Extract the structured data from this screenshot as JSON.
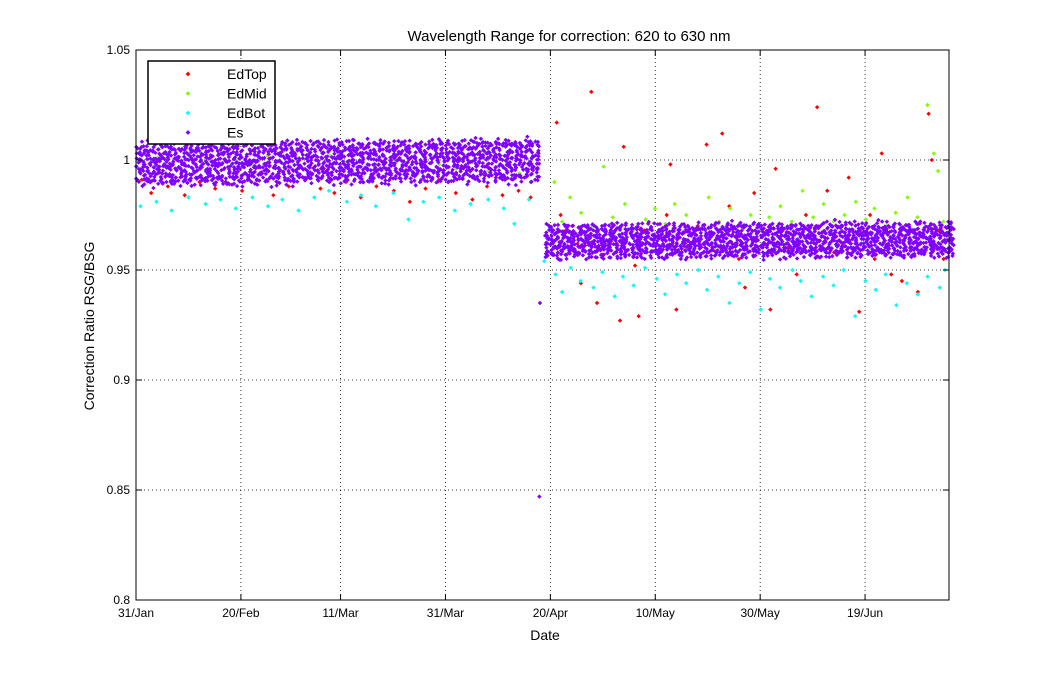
{
  "chart_data": {
    "type": "scatter",
    "title": "Wavelength Range for correction: 620 to 630 nm",
    "xlabel": "Date",
    "ylabel": "Correction Ratio RSG/BSG",
    "ylim": [
      0.8,
      1.05
    ],
    "xlim": [
      "2013-01-31",
      "2013-07-05"
    ],
    "x_ticks": [
      {
        "date": "2013-01-31",
        "label": "31/Jan"
      },
      {
        "date": "2013-02-20",
        "label": "20/Feb"
      },
      {
        "date": "2013-03-11",
        "label": "11/Mar"
      },
      {
        "date": "2013-03-31",
        "label": "31/Mar"
      },
      {
        "date": "2013-04-20",
        "label": "20/Apr"
      },
      {
        "date": "2013-05-10",
        "label": "10/May"
      },
      {
        "date": "2013-05-30",
        "label": "30/May"
      },
      {
        "date": "2013-06-19",
        "label": "19/Jun"
      }
    ],
    "y_ticks": [
      {
        "value": 0.8,
        "label": "0.8"
      },
      {
        "value": 0.85,
        "label": "0.85"
      },
      {
        "value": 0.9,
        "label": "0.9"
      },
      {
        "value": 0.95,
        "label": "0.95"
      },
      {
        "value": 1.0,
        "label": "1"
      },
      {
        "value": 1.05,
        "label": "1.05"
      }
    ],
    "grid": true,
    "grid_style": "dotted",
    "legend_position": "top-left",
    "marker": "diamond",
    "series": [
      {
        "name": "EdTop",
        "color": "#ff0000",
        "points": [
          [
            "2013-02-01",
            0.991
          ],
          [
            "2013-02-03",
            0.985
          ],
          [
            "2013-02-06",
            0.988
          ],
          [
            "2013-02-09",
            0.984
          ],
          [
            "2013-02-12",
            0.99
          ],
          [
            "2013-02-15",
            0.987
          ],
          [
            "2013-02-18",
            0.989
          ],
          [
            "2013-02-20",
            0.986
          ],
          [
            "2013-02-23",
            0.991
          ],
          [
            "2013-02-26",
            0.984
          ],
          [
            "2013-03-01",
            0.988
          ],
          [
            "2013-03-04",
            0.992
          ],
          [
            "2013-03-07",
            0.987
          ],
          [
            "2013-03-10",
            0.985
          ],
          [
            "2013-03-12",
            0.99
          ],
          [
            "2013-03-15",
            0.983
          ],
          [
            "2013-03-18",
            0.988
          ],
          [
            "2013-03-21",
            0.986
          ],
          [
            "2013-03-24",
            0.981
          ],
          [
            "2013-03-27",
            0.987
          ],
          [
            "2013-03-30",
            0.991
          ],
          [
            "2013-04-02",
            0.985
          ],
          [
            "2013-04-05",
            0.982
          ],
          [
            "2013-04-08",
            0.988
          ],
          [
            "2013-04-11",
            0.984
          ],
          [
            "2013-04-14",
            0.986
          ],
          [
            "2013-04-16",
            0.983
          ],
          [
            "2013-04-21",
            1.017
          ],
          [
            "2013-04-22",
            0.975
          ],
          [
            "2013-04-23",
            0.968
          ],
          [
            "2013-04-25",
            0.962
          ],
          [
            "2013-04-26",
            0.944
          ],
          [
            "2013-04-28",
            1.031
          ],
          [
            "2013-04-29",
            0.935
          ],
          [
            "2013-04-30",
            0.957
          ],
          [
            "2013-05-02",
            0.97
          ],
          [
            "2013-05-03",
            0.927
          ],
          [
            "2013-05-04",
            1.006
          ],
          [
            "2013-05-06",
            0.952
          ],
          [
            "2013-05-07",
            0.929
          ],
          [
            "2013-05-08",
            0.968
          ],
          [
            "2013-05-10",
            0.958
          ],
          [
            "2013-05-12",
            0.975
          ],
          [
            "2013-05-13",
            0.998
          ],
          [
            "2013-05-14",
            0.932
          ],
          [
            "2013-05-16",
            0.961
          ],
          [
            "2013-05-18",
            0.97
          ],
          [
            "2013-05-20",
            1.007
          ],
          [
            "2013-05-21",
            0.959
          ],
          [
            "2013-05-23",
            1.012
          ],
          [
            "2013-05-24",
            0.979
          ],
          [
            "2013-05-26",
            0.955
          ],
          [
            "2013-05-27",
            0.942
          ],
          [
            "2013-05-29",
            0.985
          ],
          [
            "2013-05-31",
            0.966
          ],
          [
            "2013-06-01",
            0.932
          ],
          [
            "2013-06-02",
            0.996
          ],
          [
            "2013-06-04",
            0.96
          ],
          [
            "2013-06-06",
            0.948
          ],
          [
            "2013-06-08",
            0.975
          ],
          [
            "2013-06-10",
            1.024
          ],
          [
            "2013-06-12",
            0.986
          ],
          [
            "2013-06-13",
            0.958
          ],
          [
            "2013-06-15",
            0.962
          ],
          [
            "2013-06-16",
            0.992
          ],
          [
            "2013-06-18",
            0.931
          ],
          [
            "2013-06-20",
            0.975
          ],
          [
            "2013-06-21",
            0.955
          ],
          [
            "2013-06-22",
            1.003
          ],
          [
            "2013-06-24",
            0.948
          ],
          [
            "2013-06-26",
            0.945
          ],
          [
            "2013-06-28",
            0.962
          ],
          [
            "2013-06-29",
            0.94
          ],
          [
            "2013-07-01",
            1.021
          ],
          [
            "2013-07-02",
            1.0
          ],
          [
            "2013-07-03",
            0.968
          ],
          [
            "2013-07-04",
            0.955
          ]
        ]
      },
      {
        "name": "EdMid",
        "color": "#7fff00",
        "points": [
          [
            "2013-02-01",
            0.996
          ],
          [
            "2013-02-04",
            1.001
          ],
          [
            "2013-02-07",
            0.998
          ],
          [
            "2013-02-10",
            1.002
          ],
          [
            "2013-02-13",
            0.999
          ],
          [
            "2013-02-16",
            1.003
          ],
          [
            "2013-02-19",
            1.0
          ],
          [
            "2013-02-22",
            0.998
          ],
          [
            "2013-02-25",
            1.002
          ],
          [
            "2013-02-28",
            0.999
          ],
          [
            "2013-03-03",
            1.001
          ],
          [
            "2013-03-06",
            0.997
          ],
          [
            "2013-03-09",
            1.002
          ],
          [
            "2013-03-12",
            0.999
          ],
          [
            "2013-03-15",
            1.003
          ],
          [
            "2013-03-18",
            0.998
          ],
          [
            "2013-03-21",
            1.0
          ],
          [
            "2013-03-24",
            0.996
          ],
          [
            "2013-03-27",
            1.001
          ],
          [
            "2013-03-30",
            0.998
          ],
          [
            "2013-04-02",
            0.996
          ],
          [
            "2013-04-05",
            0.999
          ],
          [
            "2013-04-08",
            0.995
          ],
          [
            "2013-04-11",
            0.997
          ],
          [
            "2013-04-14",
            0.994
          ],
          [
            "2013-04-21",
            0.99
          ],
          [
            "2013-04-22",
            0.972
          ],
          [
            "2013-04-24",
            0.983
          ],
          [
            "2013-04-26",
            0.976
          ],
          [
            "2013-04-28",
            0.97
          ],
          [
            "2013-04-30",
            0.997
          ],
          [
            "2013-05-02",
            0.974
          ],
          [
            "2013-05-04",
            0.98
          ],
          [
            "2013-05-06",
            0.968
          ],
          [
            "2013-05-08",
            0.973
          ],
          [
            "2013-05-10",
            0.978
          ],
          [
            "2013-05-12",
            0.971
          ],
          [
            "2013-05-14",
            0.98
          ],
          [
            "2013-05-16",
            0.975
          ],
          [
            "2013-05-18",
            0.969
          ],
          [
            "2013-05-20",
            0.983
          ],
          [
            "2013-05-22",
            0.972
          ],
          [
            "2013-05-24",
            0.978
          ],
          [
            "2013-05-26",
            0.97
          ],
          [
            "2013-05-28",
            0.975
          ],
          [
            "2013-05-30",
            0.968
          ],
          [
            "2013-06-01",
            0.974
          ],
          [
            "2013-06-03",
            0.979
          ],
          [
            "2013-06-05",
            0.972
          ],
          [
            "2013-06-07",
            0.986
          ],
          [
            "2013-06-09",
            0.974
          ],
          [
            "2013-06-11",
            0.98
          ],
          [
            "2013-06-13",
            0.972
          ],
          [
            "2013-06-15",
            0.975
          ],
          [
            "2013-06-17",
            0.981
          ],
          [
            "2013-06-19",
            0.973
          ],
          [
            "2013-06-21",
            0.978
          ],
          [
            "2013-06-23",
            0.97
          ],
          [
            "2013-06-25",
            0.976
          ],
          [
            "2013-06-27",
            0.983
          ],
          [
            "2013-06-29",
            0.974
          ],
          [
            "2013-07-01",
            1.025
          ],
          [
            "2013-07-02",
            1.003
          ],
          [
            "2013-07-03",
            0.995
          ],
          [
            "2013-07-04",
            0.972
          ]
        ]
      },
      {
        "name": "EdBot",
        "color": "#00ffff",
        "points": [
          [
            "2013-02-01",
            0.979
          ],
          [
            "2013-02-04",
            0.981
          ],
          [
            "2013-02-07",
            0.977
          ],
          [
            "2013-02-10",
            0.983
          ],
          [
            "2013-02-13",
            0.98
          ],
          [
            "2013-02-16",
            0.982
          ],
          [
            "2013-02-19",
            0.978
          ],
          [
            "2013-02-22",
            0.983
          ],
          [
            "2013-02-25",
            0.979
          ],
          [
            "2013-02-28",
            0.982
          ],
          [
            "2013-03-03",
            0.977
          ],
          [
            "2013-03-06",
            0.983
          ],
          [
            "2013-03-09",
            0.986
          ],
          [
            "2013-03-12",
            0.981
          ],
          [
            "2013-03-15",
            0.984
          ],
          [
            "2013-03-18",
            0.979
          ],
          [
            "2013-03-21",
            0.985
          ],
          [
            "2013-03-24",
            0.973
          ],
          [
            "2013-03-27",
            0.981
          ],
          [
            "2013-03-30",
            0.983
          ],
          [
            "2013-04-02",
            0.977
          ],
          [
            "2013-04-05",
            0.98
          ],
          [
            "2013-04-08",
            0.982
          ],
          [
            "2013-04-11",
            0.978
          ],
          [
            "2013-04-13",
            0.971
          ],
          [
            "2013-04-16",
            0.982
          ],
          [
            "2013-04-19",
            0.954
          ],
          [
            "2013-04-21",
            0.948
          ],
          [
            "2013-04-22",
            0.94
          ],
          [
            "2013-04-24",
            0.951
          ],
          [
            "2013-04-26",
            0.945
          ],
          [
            "2013-04-28",
            0.942
          ],
          [
            "2013-04-30",
            0.949
          ],
          [
            "2013-05-02",
            0.938
          ],
          [
            "2013-05-04",
            0.947
          ],
          [
            "2013-05-06",
            0.943
          ],
          [
            "2013-05-08",
            0.951
          ],
          [
            "2013-05-10",
            0.946
          ],
          [
            "2013-05-12",
            0.939
          ],
          [
            "2013-05-14",
            0.948
          ],
          [
            "2013-05-16",
            0.944
          ],
          [
            "2013-05-18",
            0.95
          ],
          [
            "2013-05-20",
            0.941
          ],
          [
            "2013-05-22",
            0.947
          ],
          [
            "2013-05-24",
            0.935
          ],
          [
            "2013-05-26",
            0.944
          ],
          [
            "2013-05-28",
            0.949
          ],
          [
            "2013-05-30",
            0.932
          ],
          [
            "2013-06-01",
            0.946
          ],
          [
            "2013-06-03",
            0.942
          ],
          [
            "2013-06-05",
            0.95
          ],
          [
            "2013-06-07",
            0.945
          ],
          [
            "2013-06-09",
            0.938
          ],
          [
            "2013-06-11",
            0.947
          ],
          [
            "2013-06-13",
            0.943
          ],
          [
            "2013-06-15",
            0.95
          ],
          [
            "2013-06-17",
            0.929
          ],
          [
            "2013-06-19",
            0.945
          ],
          [
            "2013-06-21",
            0.941
          ],
          [
            "2013-06-23",
            0.948
          ],
          [
            "2013-06-25",
            0.934
          ],
          [
            "2013-06-27",
            0.944
          ],
          [
            "2013-06-29",
            0.939
          ],
          [
            "2013-07-01",
            0.947
          ],
          [
            "2013-07-03",
            0.942
          ],
          [
            "2013-07-04",
            0.95
          ]
        ]
      },
      {
        "name": "Es",
        "color": "#7f00ff",
        "band_segments": [
          {
            "start": "2013-01-31",
            "end": "2013-04-17",
            "center_start": 0.998,
            "center_end": 1.0,
            "halfwidth": 0.01
          },
          {
            "start": "2013-04-19",
            "end": "2013-07-05",
            "center_start": 0.963,
            "center_end": 0.964,
            "halfwidth": 0.008
          }
        ],
        "points": [
          [
            "2013-04-18",
            0.935
          ],
          [
            "2013-04-18",
            0.847
          ]
        ]
      }
    ]
  }
}
